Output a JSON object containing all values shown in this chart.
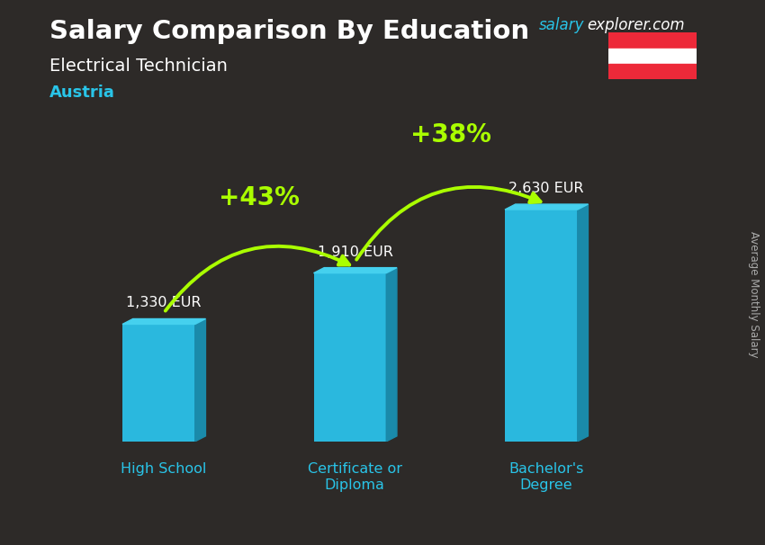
{
  "title": "Salary Comparison By Education",
  "subtitle": "Electrical Technician",
  "country": "Austria",
  "categories": [
    "High School",
    "Certificate or\nDiploma",
    "Bachelor's\nDegree"
  ],
  "values": [
    1330,
    1910,
    2630
  ],
  "labels": [
    "1,330 EUR",
    "1,910 EUR",
    "2,630 EUR"
  ],
  "pct_labels": [
    "+43%",
    "+38%"
  ],
  "bar_color_main": "#29c4e8",
  "bar_color_dark": "#1a8aaa",
  "bar_color_top": "#4dd8f0",
  "bar_3d_depth": 0.07,
  "bar_3d_rise": 0.04,
  "bg_color": "#2a2a2a",
  "title_color": "#ffffff",
  "subtitle_color": "#ffffff",
  "country_color": "#00ccff",
  "label_color": "#ffffff",
  "pct_color": "#aaff00",
  "cat_color": "#29c4e8",
  "ylabel": "Average Monthly Salary",
  "ylim": [
    0,
    3400
  ],
  "bar_width": 0.38,
  "x_positions": [
    0,
    1,
    2
  ]
}
